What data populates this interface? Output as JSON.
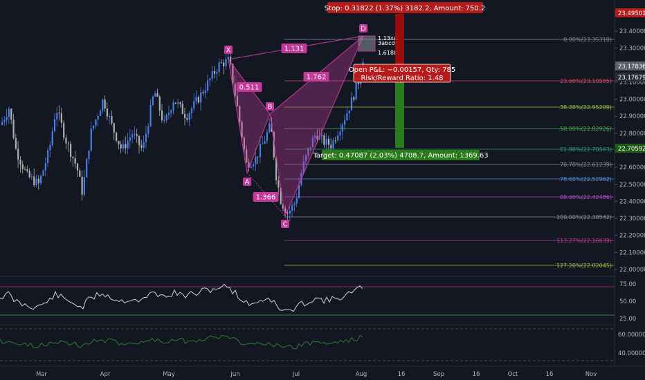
{
  "colors": {
    "background": "#131722",
    "bull": "#4a7ee6",
    "bear": "#b0b0b0",
    "pattern": "#c2399a",
    "stop": "#9b0d0d",
    "target": "#2b7a1c",
    "axis_text": "#b2b5be"
  },
  "price_axis": {
    "ticks": [
      "23.40000",
      "23.30000",
      "23.20000",
      "23.10000",
      "23.00000",
      "22.90000",
      "22.80000",
      "22.70000",
      "22.60000",
      "22.50000",
      "22.40000",
      "22.30000",
      "22.20000",
      "22.10000",
      "22.00000"
    ],
    "badges": {
      "top": "23.49501",
      "current": "23.17836",
      "current2": "23.17679",
      "target": "22.70592"
    }
  },
  "rsi_axis": {
    "ticks": [
      "75.00",
      "50.00",
      "25.00"
    ]
  },
  "osc_axis": {
    "ticks": [
      "60.00000",
      "40.00000"
    ]
  },
  "time_axis": {
    "labels": [
      "Mar",
      "Apr",
      "May",
      "Jun",
      "Jul",
      "Aug",
      "16",
      "Sep",
      "16",
      "Oct",
      "16",
      "Nov"
    ]
  },
  "fib_levels": [
    {
      "label": "0.00%(23.35310)",
      "color": "#8a8f9c"
    },
    {
      "label": "23.60%(23.10585)",
      "color": "#d64a63"
    },
    {
      "label": "38.20%(22.95289)",
      "color": "#8fbf3c"
    },
    {
      "label": "50.00%(22.82926)",
      "color": "#4caf50"
    },
    {
      "label": "61.80%(22.70563)",
      "color": "#2f9e7c"
    },
    {
      "label": "70.70%(22.61239)",
      "color": "#8a8f9c"
    },
    {
      "label": "78.60%(22.52962)",
      "color": "#4a90d9"
    },
    {
      "label": "88.60%(22.42486)",
      "color": "#b04ac9"
    },
    {
      "label": "100.00%(22.30542)",
      "color": "#8a8f9c"
    },
    {
      "label": "113.27%(22.16639)",
      "color": "#c2399a"
    },
    {
      "label": "127.20%(22.02045)",
      "color": "#a6b83a"
    }
  ],
  "pattern": {
    "points": [
      "X",
      "A",
      "B",
      "C",
      "D"
    ],
    "ratios": {
      "xab": "0.511",
      "abc": "1.366",
      "bcd": "1.762",
      "xad": "1.131"
    },
    "annotations": [
      "1.13xa",
      "3abcd",
      "1.618b"
    ]
  },
  "position": {
    "stop_text": "Stop: 0.31822 (1.37%) 3182.2, Amount: 750.2",
    "pnl_text": "Open P&L: −0.00157, Qty: 785",
    "rr_text": "Risk/Reward Ratio: 1.48",
    "target_text": "Target: 0.47087 (2.03%) 4708.7, Amount: 1369.63"
  }
}
